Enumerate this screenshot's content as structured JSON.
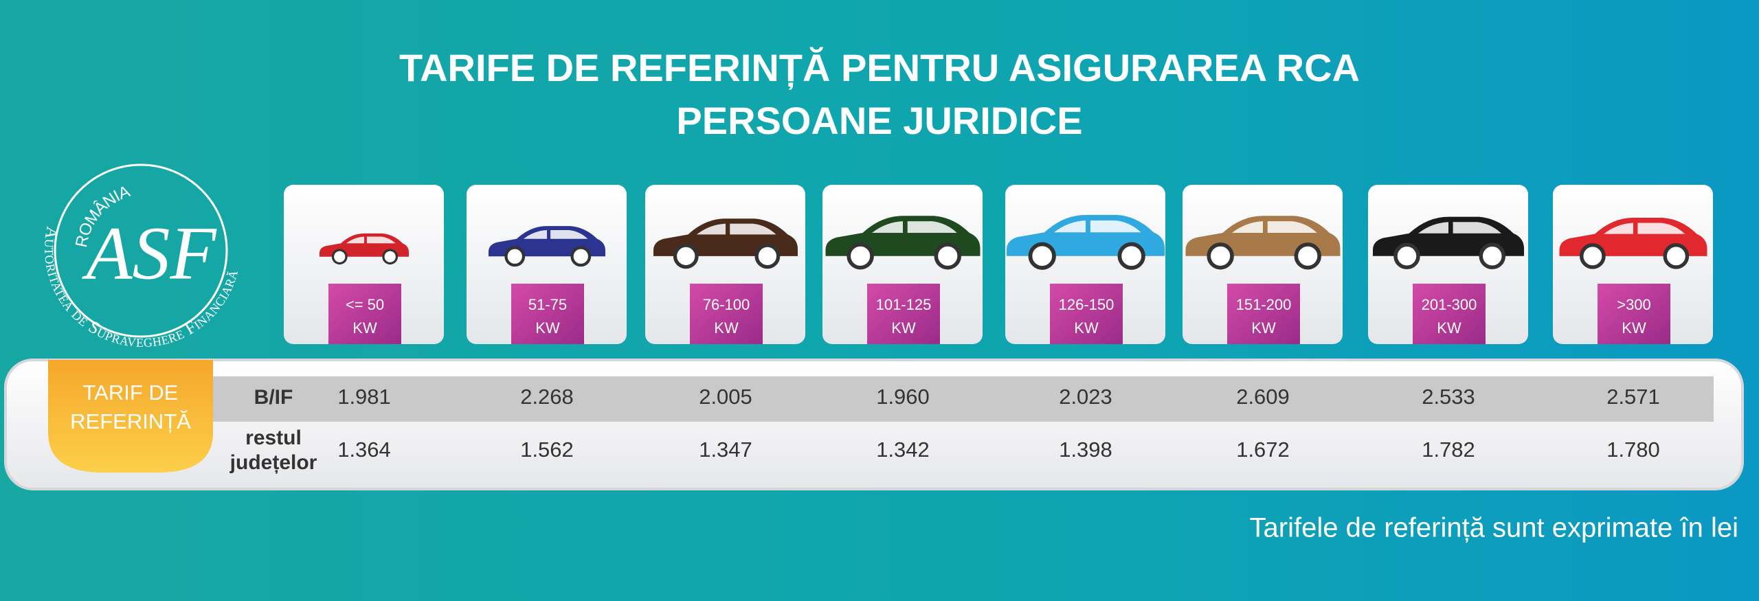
{
  "header": {
    "title_lines": [
      "TARIFE DE REFERINȚĂ PENTRU ASIGURAREA RCA",
      "PERSOANE JURIDICE"
    ]
  },
  "logo": {
    "country": "ROMÂNIA",
    "authority": "Autoritatea de Supraveghere Financiară",
    "initials": "ASF"
  },
  "power_classes": [
    {
      "range": "<= 50",
      "unit": "KW"
    },
    {
      "range": "51-75",
      "unit": "KW"
    },
    {
      "range": "76-100",
      "unit": "KW"
    },
    {
      "range": "101-125",
      "unit": "KW"
    },
    {
      "range": "126-150",
      "unit": "KW"
    },
    {
      "range": "151-200",
      "unit": "KW"
    },
    {
      "range": "201-300",
      "unit": "KW"
    },
    {
      "range": ">300",
      "unit": "KW"
    }
  ],
  "table": {
    "label_lines": [
      "TARIF DE",
      "REFERINȚĂ"
    ],
    "rows": [
      {
        "name_lines": [
          "B/IF"
        ],
        "values": [
          "1.981",
          "2.268",
          "2.005",
          "1.960",
          "2.023",
          "2.609",
          "2.533",
          "2.571"
        ]
      },
      {
        "name_lines": [
          "restul",
          "județelor"
        ],
        "values": [
          "1.364",
          "1.562",
          "1.347",
          "1.342",
          "1.398",
          "1.672",
          "1.782",
          "1.780"
        ]
      }
    ]
  },
  "footer": "Tarifele de referință sunt exprimate în lei"
}
